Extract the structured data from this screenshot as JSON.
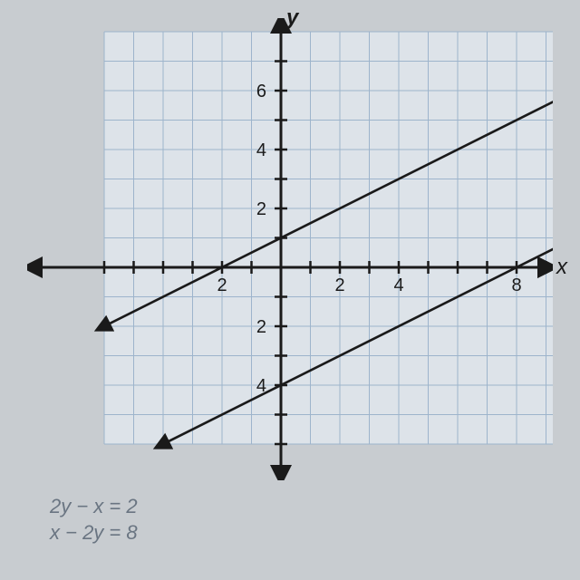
{
  "graph": {
    "type": "line",
    "background_color": "#c8ccd0",
    "grid_area_color": "#dde3e9",
    "grid_line_color": "#9db4cc",
    "axis_color": "#1a1a1a",
    "line_color": "#1a1a1a",
    "text_color": "#1a1a1a",
    "eq_text_color": "#6a7582",
    "xlim": [
      -6,
      10
    ],
    "ylim": [
      -6,
      8
    ],
    "xtick_labels": [
      {
        "val": -2,
        "label": "2"
      },
      {
        "val": 2,
        "label": "2"
      },
      {
        "val": 4,
        "label": "4"
      },
      {
        "val": 8,
        "label": "8"
      }
    ],
    "ytick_labels": [
      {
        "val": 6,
        "label": "6"
      },
      {
        "val": 4,
        "label": "4"
      },
      {
        "val": 2,
        "label": "2"
      },
      {
        "val": -2,
        "label": "2"
      },
      {
        "val": -4,
        "label": "4"
      }
    ],
    "x_axis_label": "x",
    "y_axis_label": "y",
    "axis_label_fontsize": 24,
    "tick_label_fontsize": 20,
    "tick_size": 7,
    "line_width": 2.5,
    "axis_width": 3,
    "grid_width": 1,
    "lines": [
      {
        "x1": -6,
        "y1": -2,
        "x2": 10,
        "y2": 6
      },
      {
        "x1": -4,
        "y1": -6,
        "x2": 10,
        "y2": 1
      }
    ]
  },
  "equations": {
    "eq1": "2y − x = 2",
    "eq2": "x − 2y = 8"
  }
}
